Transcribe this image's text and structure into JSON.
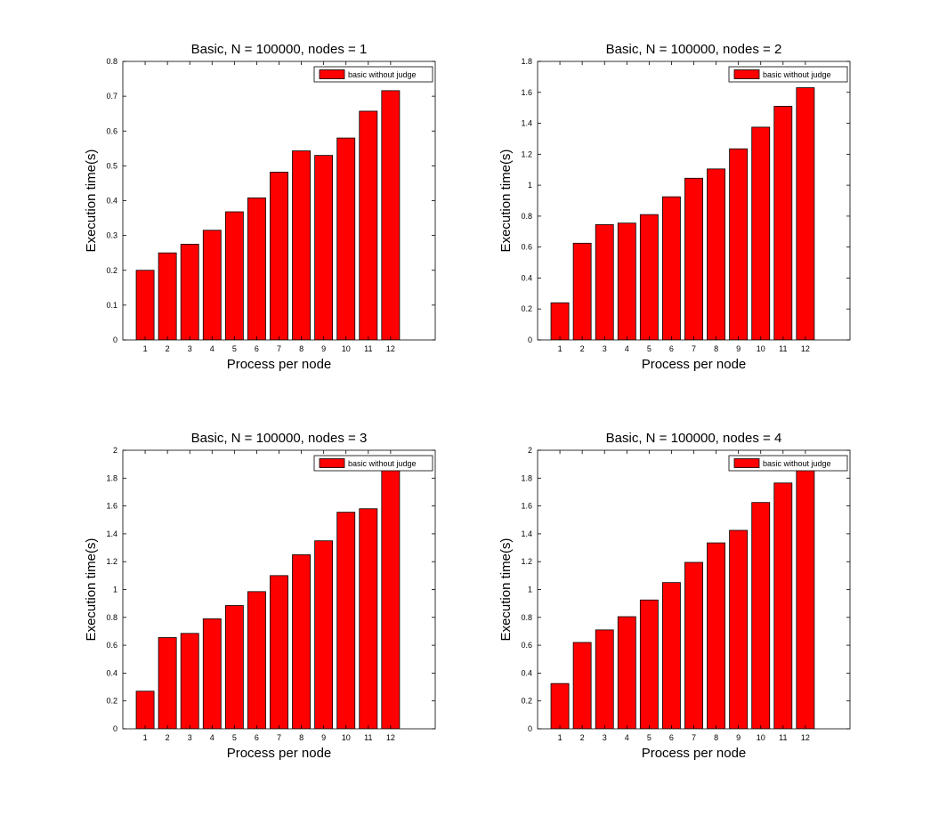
{
  "colors": {
    "bar": "#ff0000",
    "bar_edge": "#000000",
    "axes": "#000000",
    "background": "#ffffff"
  },
  "chart_data": [
    {
      "type": "bar",
      "title": "Basic, N = 100000, nodes = 1",
      "xlabel": "Process per node",
      "ylabel": "Execution time(s)",
      "categories": [
        "1",
        "2",
        "3",
        "4",
        "5",
        "6",
        "7",
        "8",
        "9",
        "10",
        "11",
        "12"
      ],
      "xlim": [
        0,
        14
      ],
      "ylim": [
        0,
        0.8
      ],
      "yticks": [
        0,
        0.1,
        0.2,
        0.3,
        0.4,
        0.5,
        0.6,
        0.7,
        0.8
      ],
      "yticklabels": [
        "0",
        "0.1",
        "0.2",
        "0.3",
        "0.4",
        "0.5",
        "0.6",
        "0.7",
        "0.8"
      ],
      "grid": false,
      "legend_position": "top-right",
      "series": [
        {
          "name": "basic without judge",
          "values": [
            0.2,
            0.25,
            0.275,
            0.315,
            0.368,
            0.408,
            0.482,
            0.543,
            0.53,
            0.58,
            0.657,
            0.716
          ]
        }
      ]
    },
    {
      "type": "bar",
      "title": "Basic, N = 100000, nodes = 2",
      "xlabel": "Process per node",
      "ylabel": "Execution time(s)",
      "categories": [
        "1",
        "2",
        "3",
        "4",
        "5",
        "6",
        "7",
        "8",
        "9",
        "10",
        "11",
        "12"
      ],
      "xlim": [
        0,
        14
      ],
      "ylim": [
        0,
        1.8
      ],
      "yticks": [
        0,
        0.2,
        0.4,
        0.6,
        0.8,
        1,
        1.2,
        1.4,
        1.6,
        1.8
      ],
      "yticklabels": [
        "0",
        "0.2",
        "0.4",
        "0.6",
        "0.8",
        "1",
        "1.2",
        "1.4",
        "1.6",
        "1.8"
      ],
      "grid": false,
      "legend_position": "top-right",
      "series": [
        {
          "name": "basic without judge",
          "values": [
            0.24,
            0.625,
            0.745,
            0.755,
            0.81,
            0.925,
            1.045,
            1.105,
            1.235,
            1.375,
            1.51,
            1.63
          ]
        }
      ]
    },
    {
      "type": "bar",
      "title": "Basic, N = 100000, nodes = 3",
      "xlabel": "Process per node",
      "ylabel": "Execution time(s)",
      "categories": [
        "1",
        "2",
        "3",
        "4",
        "5",
        "6",
        "7",
        "8",
        "9",
        "10",
        "11",
        "12"
      ],
      "xlim": [
        0,
        14
      ],
      "ylim": [
        0,
        2
      ],
      "yticks": [
        0,
        0.2,
        0.4,
        0.6,
        0.8,
        1,
        1.2,
        1.4,
        1.6,
        1.8,
        2
      ],
      "yticklabels": [
        "0",
        "0.2",
        "0.4",
        "0.6",
        "0.8",
        "1",
        "1.2",
        "1.4",
        "1.6",
        "1.8",
        "2"
      ],
      "grid": false,
      "legend_position": "top-right",
      "series": [
        {
          "name": "basic without judge",
          "values": [
            0.27,
            0.655,
            0.685,
            0.79,
            0.885,
            0.985,
            1.1,
            1.25,
            1.35,
            1.555,
            1.58,
            1.875
          ]
        }
      ]
    },
    {
      "type": "bar",
      "title": "Basic, N = 100000, nodes = 4",
      "xlabel": "Process per node",
      "ylabel": "Execution time(s)",
      "categories": [
        "1",
        "2",
        "3",
        "4",
        "5",
        "6",
        "7",
        "8",
        "9",
        "10",
        "11",
        "12"
      ],
      "xlim": [
        0,
        14
      ],
      "ylim": [
        0,
        2
      ],
      "yticks": [
        0,
        0.2,
        0.4,
        0.6,
        0.8,
        1,
        1.2,
        1.4,
        1.6,
        1.8,
        2
      ],
      "yticklabels": [
        "0",
        "0.2",
        "0.4",
        "0.6",
        "0.8",
        "1",
        "1.2",
        "1.4",
        "1.6",
        "1.8",
        "2"
      ],
      "grid": false,
      "legend_position": "top-right",
      "series": [
        {
          "name": "basic without judge",
          "values": [
            0.325,
            0.62,
            0.71,
            0.805,
            0.925,
            1.05,
            1.195,
            1.335,
            1.425,
            1.625,
            1.765,
            1.86
          ]
        }
      ]
    }
  ]
}
